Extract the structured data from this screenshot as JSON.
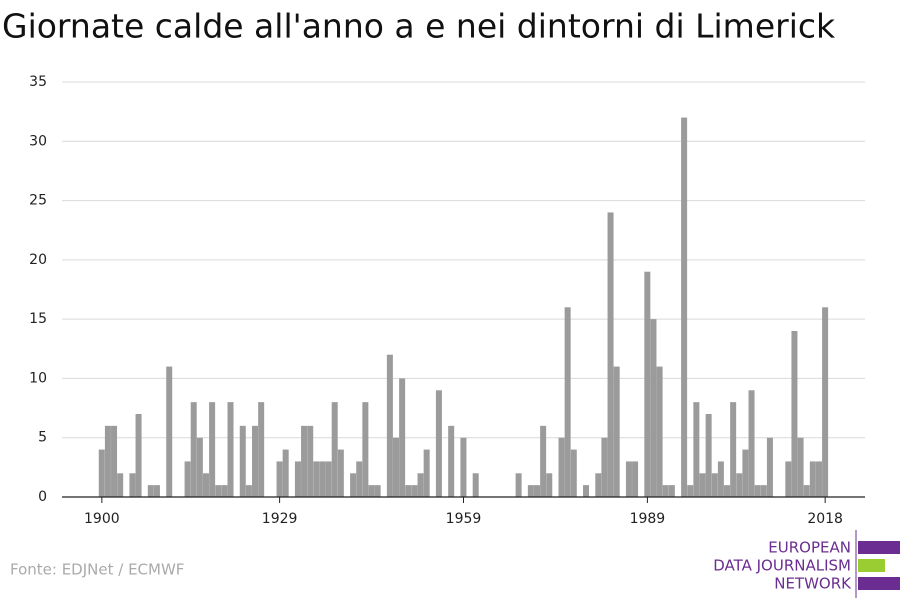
{
  "chart_data": {
    "type": "bar",
    "title": "Giornate calde all'anno a e nei dintorni di Limerick",
    "x": [
      1900,
      1901,
      1902,
      1903,
      1904,
      1905,
      1906,
      1907,
      1908,
      1909,
      1910,
      1911,
      1912,
      1913,
      1914,
      1915,
      1916,
      1917,
      1918,
      1919,
      1920,
      1921,
      1922,
      1923,
      1924,
      1925,
      1926,
      1927,
      1928,
      1929,
      1930,
      1931,
      1932,
      1933,
      1934,
      1935,
      1936,
      1937,
      1938,
      1939,
      1940,
      1941,
      1942,
      1943,
      1944,
      1945,
      1946,
      1947,
      1948,
      1949,
      1950,
      1951,
      1952,
      1953,
      1954,
      1955,
      1956,
      1957,
      1958,
      1959,
      1960,
      1961,
      1962,
      1963,
      1964,
      1965,
      1966,
      1967,
      1968,
      1969,
      1970,
      1971,
      1972,
      1973,
      1974,
      1975,
      1976,
      1977,
      1978,
      1979,
      1980,
      1981,
      1982,
      1983,
      1984,
      1985,
      1986,
      1987,
      1988,
      1989,
      1990,
      1991,
      1992,
      1993,
      1994,
      1995,
      1996,
      1997,
      1998,
      1999,
      2000,
      2001,
      2002,
      2003,
      2004,
      2005,
      2006,
      2007,
      2008,
      2009,
      2010,
      2011,
      2012,
      2013,
      2014,
      2015,
      2016,
      2017,
      2018
    ],
    "values": [
      4,
      6,
      6,
      2,
      0,
      2,
      7,
      0,
      1,
      1,
      0,
      11,
      0,
      0,
      3,
      8,
      5,
      2,
      8,
      1,
      1,
      8,
      0,
      6,
      1,
      6,
      8,
      0,
      0,
      3,
      4,
      0,
      3,
      6,
      6,
      3,
      3,
      3,
      8,
      4,
      0,
      2,
      3,
      8,
      1,
      1,
      0,
      12,
      5,
      10,
      1,
      1,
      2,
      4,
      0,
      9,
      0,
      6,
      0,
      5,
      0,
      2,
      0,
      0,
      0,
      0,
      0,
      0,
      2,
      0,
      1,
      1,
      6,
      2,
      0,
      5,
      16,
      4,
      0,
      1,
      0,
      2,
      5,
      24,
      11,
      0,
      3,
      3,
      0,
      19,
      15,
      11,
      1,
      1,
      0,
      32,
      1,
      8,
      2,
      7,
      2,
      3,
      1,
      8,
      2,
      4,
      9,
      1,
      1,
      5,
      0,
      0,
      3,
      14,
      5,
      1,
      3,
      3,
      16
    ],
    "color": "#9b9b9b",
    "xlim": [
      1893.5,
      2024.5
    ],
    "xticks": [
      1900,
      1929,
      1959,
      1989,
      2018
    ],
    "ylim": [
      0,
      35
    ],
    "yticks": [
      0,
      5,
      10,
      15,
      20,
      25,
      30,
      35
    ],
    "grid": true
  },
  "source": "Fonte: EDJNet / ECMWF",
  "logo": [
    "EUROPEAN",
    "DATA JOURNALISM",
    "NETWORK"
  ]
}
